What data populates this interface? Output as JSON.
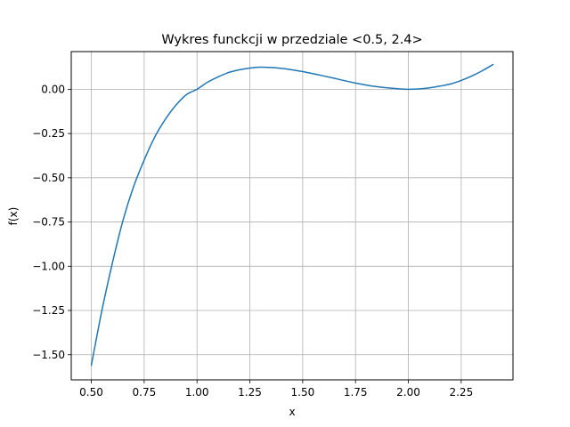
{
  "chart_data": {
    "type": "line",
    "title": "Wykres funckcji w przedziale <0.5, 2.4>",
    "xlabel": "x",
    "ylabel": "f(x)",
    "xlim": [
      0.405,
      2.495
    ],
    "ylim": [
      -1.642,
      0.213
    ],
    "grid": true,
    "xticks": [
      0.5,
      0.75,
      1.0,
      1.25,
      1.5,
      1.75,
      2.0,
      2.25
    ],
    "xtick_labels": [
      "0.50",
      "0.75",
      "1.00",
      "1.25",
      "1.50",
      "1.75",
      "2.00",
      "2.25"
    ],
    "yticks": [
      0.0,
      -0.25,
      -0.5,
      -0.75,
      -1.0,
      -1.25,
      -1.5
    ],
    "ytick_labels": [
      "0.00",
      "−0.25",
      "−0.50",
      "−0.75",
      "−1.00",
      "−1.25",
      "−1.50"
    ],
    "series": [
      {
        "color": "#1f77b4",
        "x": [
          0.5,
          0.55,
          0.6,
          0.65,
          0.7,
          0.75,
          0.8,
          0.85,
          0.9,
          0.95,
          1.0,
          1.05,
          1.1,
          1.15,
          1.2,
          1.25,
          1.3,
          1.35,
          1.4,
          1.45,
          1.5,
          1.55,
          1.6,
          1.65,
          1.7,
          1.75,
          1.8,
          1.85,
          1.9,
          1.95,
          2.0,
          2.05,
          2.1,
          2.15,
          2.2,
          2.25,
          2.3,
          2.35,
          2.4
        ],
        "y": [
          -1.56,
          -1.25,
          -0.98,
          -0.74,
          -0.55,
          -0.4,
          -0.27,
          -0.17,
          -0.09,
          -0.03,
          0.0,
          0.04,
          0.07,
          0.095,
          0.11,
          0.12,
          0.125,
          0.123,
          0.118,
          0.11,
          0.1,
          0.088,
          0.075,
          0.062,
          0.048,
          0.035,
          0.024,
          0.015,
          0.008,
          0.003,
          0.0,
          0.002,
          0.008,
          0.018,
          0.03,
          0.05,
          0.075,
          0.105,
          0.14
        ]
      }
    ]
  }
}
